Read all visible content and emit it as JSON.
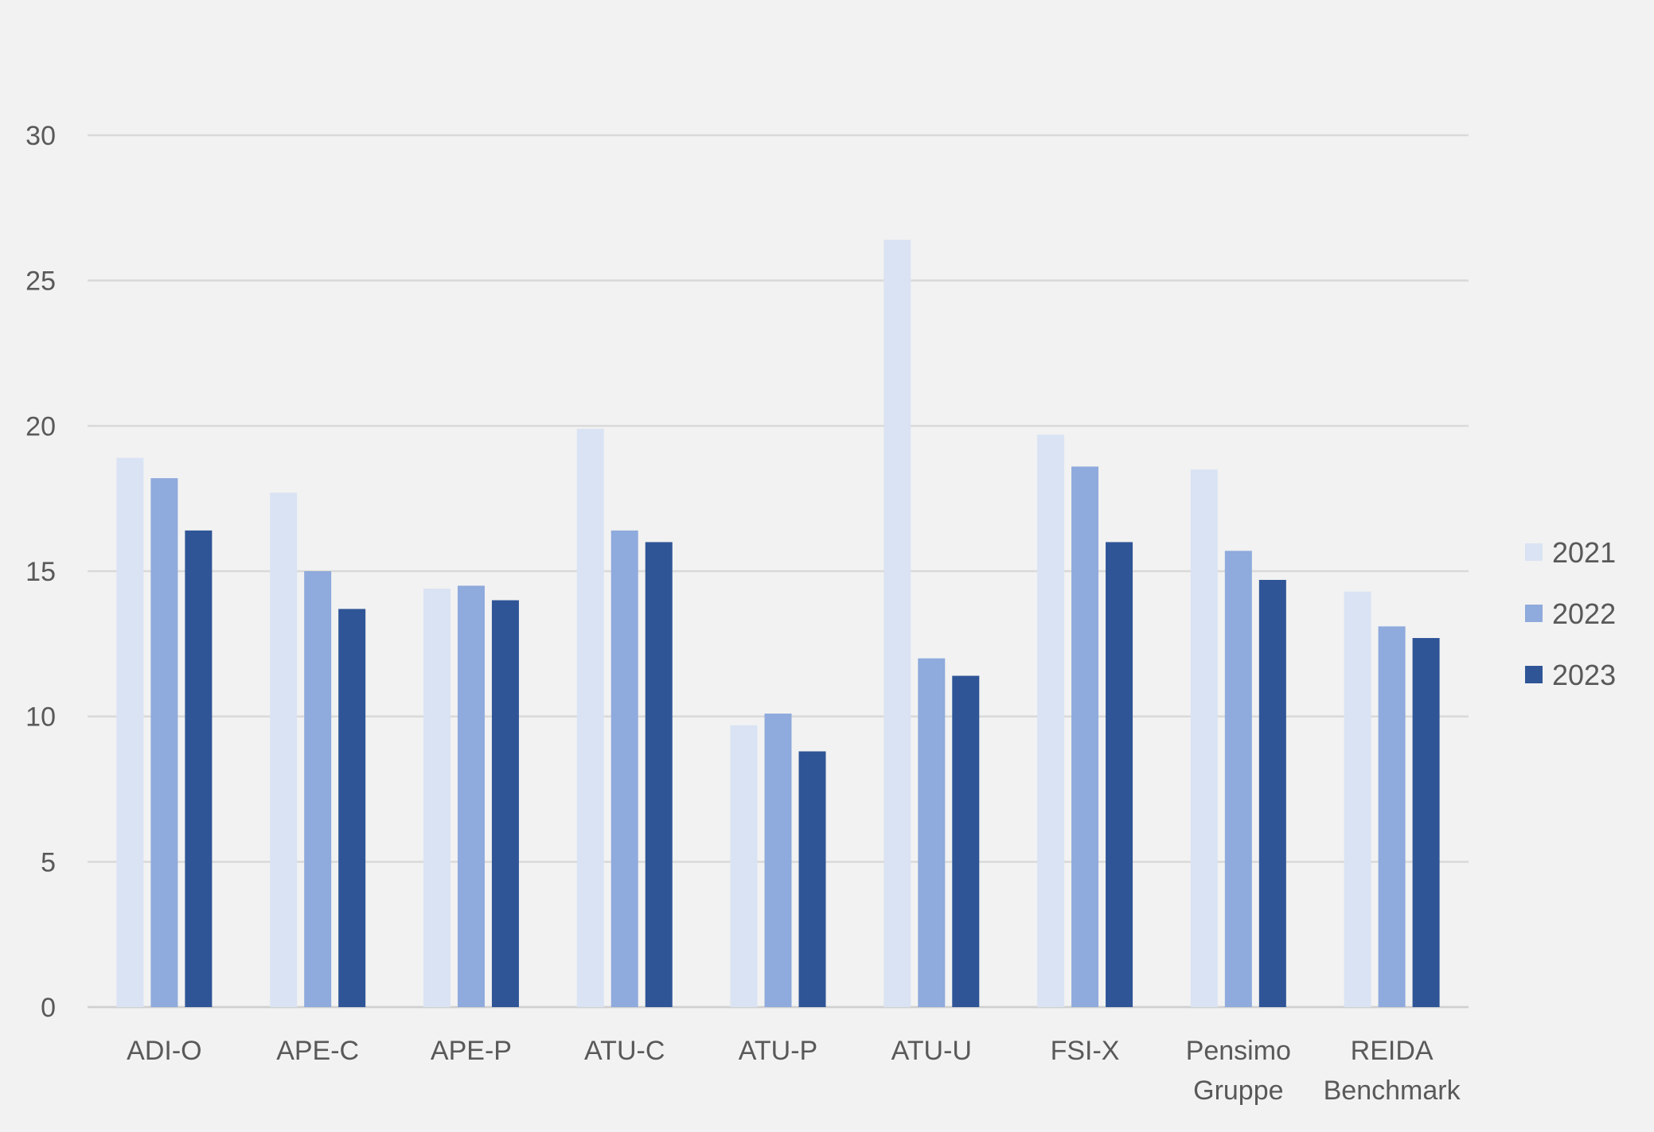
{
  "chart_data": {
    "type": "bar",
    "title": "",
    "xlabel": "",
    "ylabel": "",
    "categories": [
      [
        "ADI-O"
      ],
      [
        "APE-C"
      ],
      [
        "APE-P"
      ],
      [
        "ATU-C"
      ],
      [
        "ATU-P"
      ],
      [
        "ATU-U"
      ],
      [
        "FSI-X"
      ],
      [
        "Pensimo",
        "Gruppe"
      ],
      [
        "REIDA",
        "Benchmark"
      ]
    ],
    "series": [
      {
        "name": "2021",
        "color": "#dae3f3",
        "values": [
          18.9,
          17.7,
          14.4,
          19.9,
          9.7,
          26.4,
          19.7,
          18.5,
          14.3
        ]
      },
      {
        "name": "2022",
        "color": "#8faadc",
        "values": [
          18.2,
          15.0,
          14.5,
          16.4,
          10.1,
          12.0,
          18.6,
          15.7,
          13.1
        ]
      },
      {
        "name": "2023",
        "color": "#2f5597",
        "values": [
          16.4,
          13.7,
          14.0,
          16.0,
          8.8,
          11.4,
          16.0,
          14.7,
          12.7
        ]
      }
    ],
    "ylim": [
      0,
      30
    ],
    "yticks": [
      0,
      5,
      10,
      15,
      20,
      25,
      30
    ],
    "grid": true,
    "legend_position": "right",
    "colors": {
      "background": "#f2f2f2",
      "grid": "#d9d9d9",
      "text": "#595959"
    }
  }
}
